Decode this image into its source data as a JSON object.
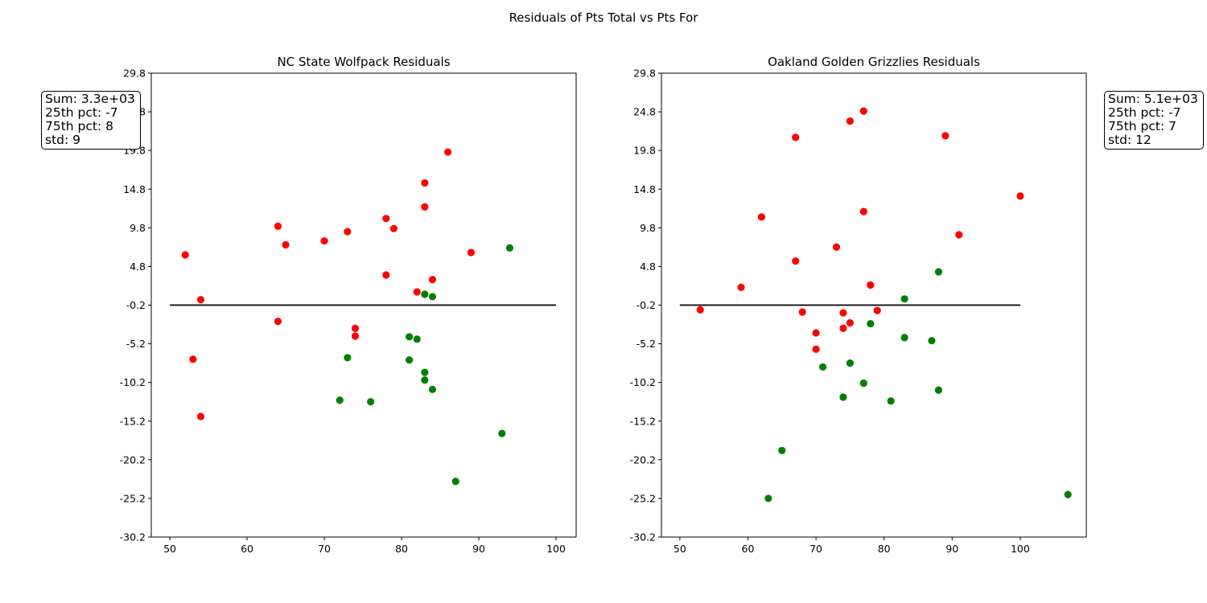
{
  "chart_data": {
    "suptitle": "Residuals of Pts Total vs Pts For",
    "colors": {
      "positive": "#ff0000",
      "negative": "#008000",
      "line": "#000000"
    },
    "panels": [
      {
        "type": "scatter",
        "title": "NC State Wolfpack Residuals",
        "xlim": [
          47.6,
          102.6
        ],
        "ylim": [
          -30.2,
          29.8
        ],
        "xticks": [
          50,
          60,
          70,
          80,
          90,
          100
        ],
        "yticks": [
          29.8,
          24.8,
          19.8,
          14.8,
          9.8,
          4.8,
          -0.2,
          -5.2,
          -10.2,
          -15.2,
          -20.2,
          -25.2,
          -30.2
        ],
        "xtick_labels": [
          "50",
          "60",
          "70",
          "80",
          "90",
          "100"
        ],
        "ytick_labels": [
          "29.8",
          "24.8",
          "19.8",
          "14.8",
          "9.8",
          "4.8",
          "-0.2",
          "-5.2",
          "-10.2",
          "-15.2",
          "-20.2",
          "-25.2",
          "-30.2"
        ],
        "hline": {
          "y": -0.2,
          "x_from": 50,
          "x_to": 100
        },
        "points": [
          {
            "x": 52,
            "y": 6.3,
            "color": "red"
          },
          {
            "x": 54,
            "y": 0.5,
            "color": "red"
          },
          {
            "x": 53,
            "y": -7.2,
            "color": "red"
          },
          {
            "x": 54,
            "y": -14.6,
            "color": "red"
          },
          {
            "x": 64,
            "y": 10.0,
            "color": "red"
          },
          {
            "x": 65,
            "y": 7.6,
            "color": "red"
          },
          {
            "x": 64,
            "y": -2.3,
            "color": "red"
          },
          {
            "x": 70,
            "y": 8.1,
            "color": "red"
          },
          {
            "x": 73,
            "y": 9.3,
            "color": "red"
          },
          {
            "x": 74,
            "y": -3.2,
            "color": "red"
          },
          {
            "x": 74,
            "y": -4.2,
            "color": "red"
          },
          {
            "x": 78,
            "y": 11.0,
            "color": "red"
          },
          {
            "x": 79,
            "y": 9.7,
            "color": "red"
          },
          {
            "x": 78,
            "y": 3.7,
            "color": "red"
          },
          {
            "x": 82,
            "y": 1.5,
            "color": "red"
          },
          {
            "x": 83,
            "y": 15.6,
            "color": "red"
          },
          {
            "x": 83,
            "y": 12.5,
            "color": "red"
          },
          {
            "x": 84,
            "y": 3.1,
            "color": "red"
          },
          {
            "x": 86,
            "y": 19.6,
            "color": "red"
          },
          {
            "x": 89,
            "y": 6.6,
            "color": "red"
          },
          {
            "x": 83,
            "y": 1.2,
            "color": "green"
          },
          {
            "x": 84,
            "y": 0.9,
            "color": "green"
          },
          {
            "x": 94,
            "y": 7.2,
            "color": "green"
          },
          {
            "x": 81,
            "y": -4.3,
            "color": "green"
          },
          {
            "x": 82,
            "y": -4.6,
            "color": "green"
          },
          {
            "x": 73,
            "y": -7.0,
            "color": "green"
          },
          {
            "x": 81,
            "y": -7.3,
            "color": "green"
          },
          {
            "x": 83,
            "y": -8.9,
            "color": "green"
          },
          {
            "x": 83,
            "y": -9.9,
            "color": "green"
          },
          {
            "x": 84,
            "y": -11.1,
            "color": "green"
          },
          {
            "x": 72,
            "y": -12.5,
            "color": "green"
          },
          {
            "x": 76,
            "y": -12.7,
            "color": "green"
          },
          {
            "x": 93,
            "y": -16.8,
            "color": "green"
          },
          {
            "x": 87,
            "y": -23.0,
            "color": "green"
          }
        ],
        "stats": [
          "Sum: 3.3e+03",
          "25th pct: -7",
          "75th pct: 8",
          "std: 9"
        ]
      },
      {
        "type": "scatter",
        "title": "Oakland Golden Grizzlies Residuals",
        "xlim": [
          47.3,
          109.7
        ],
        "ylim": [
          -30.2,
          29.8
        ],
        "xticks": [
          50,
          60,
          70,
          80,
          90,
          100
        ],
        "yticks": [
          29.8,
          24.8,
          19.8,
          14.8,
          9.8,
          4.8,
          -0.2,
          -5.2,
          -10.2,
          -15.2,
          -20.2,
          -25.2,
          -30.2
        ],
        "xtick_labels": [
          "50",
          "60",
          "70",
          "80",
          "90",
          "100"
        ],
        "ytick_labels": [
          "29.8",
          "24.8",
          "19.8",
          "14.8",
          "9.8",
          "4.8",
          "-0.2",
          "-5.2",
          "-10.2",
          "-15.2",
          "-20.2",
          "-25.2",
          "-30.2"
        ],
        "hline": {
          "y": -0.2,
          "x_from": 50,
          "x_to": 100
        },
        "points": [
          {
            "x": 53,
            "y": -0.8,
            "color": "red"
          },
          {
            "x": 59,
            "y": 2.1,
            "color": "red"
          },
          {
            "x": 62,
            "y": 11.2,
            "color": "red"
          },
          {
            "x": 67,
            "y": 21.5,
            "color": "red"
          },
          {
            "x": 67,
            "y": 5.5,
            "color": "red"
          },
          {
            "x": 68,
            "y": -1.1,
            "color": "red"
          },
          {
            "x": 70,
            "y": -3.8,
            "color": "red"
          },
          {
            "x": 70,
            "y": -5.9,
            "color": "red"
          },
          {
            "x": 73,
            "y": 7.3,
            "color": "red"
          },
          {
            "x": 74,
            "y": -1.2,
            "color": "red"
          },
          {
            "x": 74,
            "y": -3.2,
            "color": "red"
          },
          {
            "x": 75,
            "y": 23.6,
            "color": "red"
          },
          {
            "x": 75,
            "y": -2.5,
            "color": "red"
          },
          {
            "x": 77,
            "y": 24.9,
            "color": "red"
          },
          {
            "x": 77,
            "y": 11.9,
            "color": "red"
          },
          {
            "x": 78,
            "y": 2.4,
            "color": "red"
          },
          {
            "x": 79,
            "y": -0.9,
            "color": "red"
          },
          {
            "x": 89,
            "y": 21.7,
            "color": "red"
          },
          {
            "x": 91,
            "y": 8.9,
            "color": "red"
          },
          {
            "x": 100,
            "y": 13.9,
            "color": "red"
          },
          {
            "x": 83,
            "y": 0.6,
            "color": "green"
          },
          {
            "x": 88,
            "y": 4.1,
            "color": "green"
          },
          {
            "x": 78,
            "y": -2.6,
            "color": "green"
          },
          {
            "x": 83,
            "y": -4.4,
            "color": "green"
          },
          {
            "x": 87,
            "y": -4.8,
            "color": "green"
          },
          {
            "x": 75,
            "y": -7.7,
            "color": "green"
          },
          {
            "x": 71,
            "y": -8.2,
            "color": "green"
          },
          {
            "x": 77,
            "y": -10.3,
            "color": "green"
          },
          {
            "x": 88,
            "y": -11.2,
            "color": "green"
          },
          {
            "x": 74,
            "y": -12.1,
            "color": "green"
          },
          {
            "x": 81,
            "y": -12.6,
            "color": "green"
          },
          {
            "x": 65,
            "y": -19.0,
            "color": "green"
          },
          {
            "x": 63,
            "y": -25.2,
            "color": "green"
          },
          {
            "x": 107,
            "y": -24.7,
            "color": "green"
          }
        ],
        "stats": [
          "Sum: 5.1e+03",
          "25th pct: -7",
          "75th pct: 7",
          "std: 12"
        ]
      }
    ]
  }
}
